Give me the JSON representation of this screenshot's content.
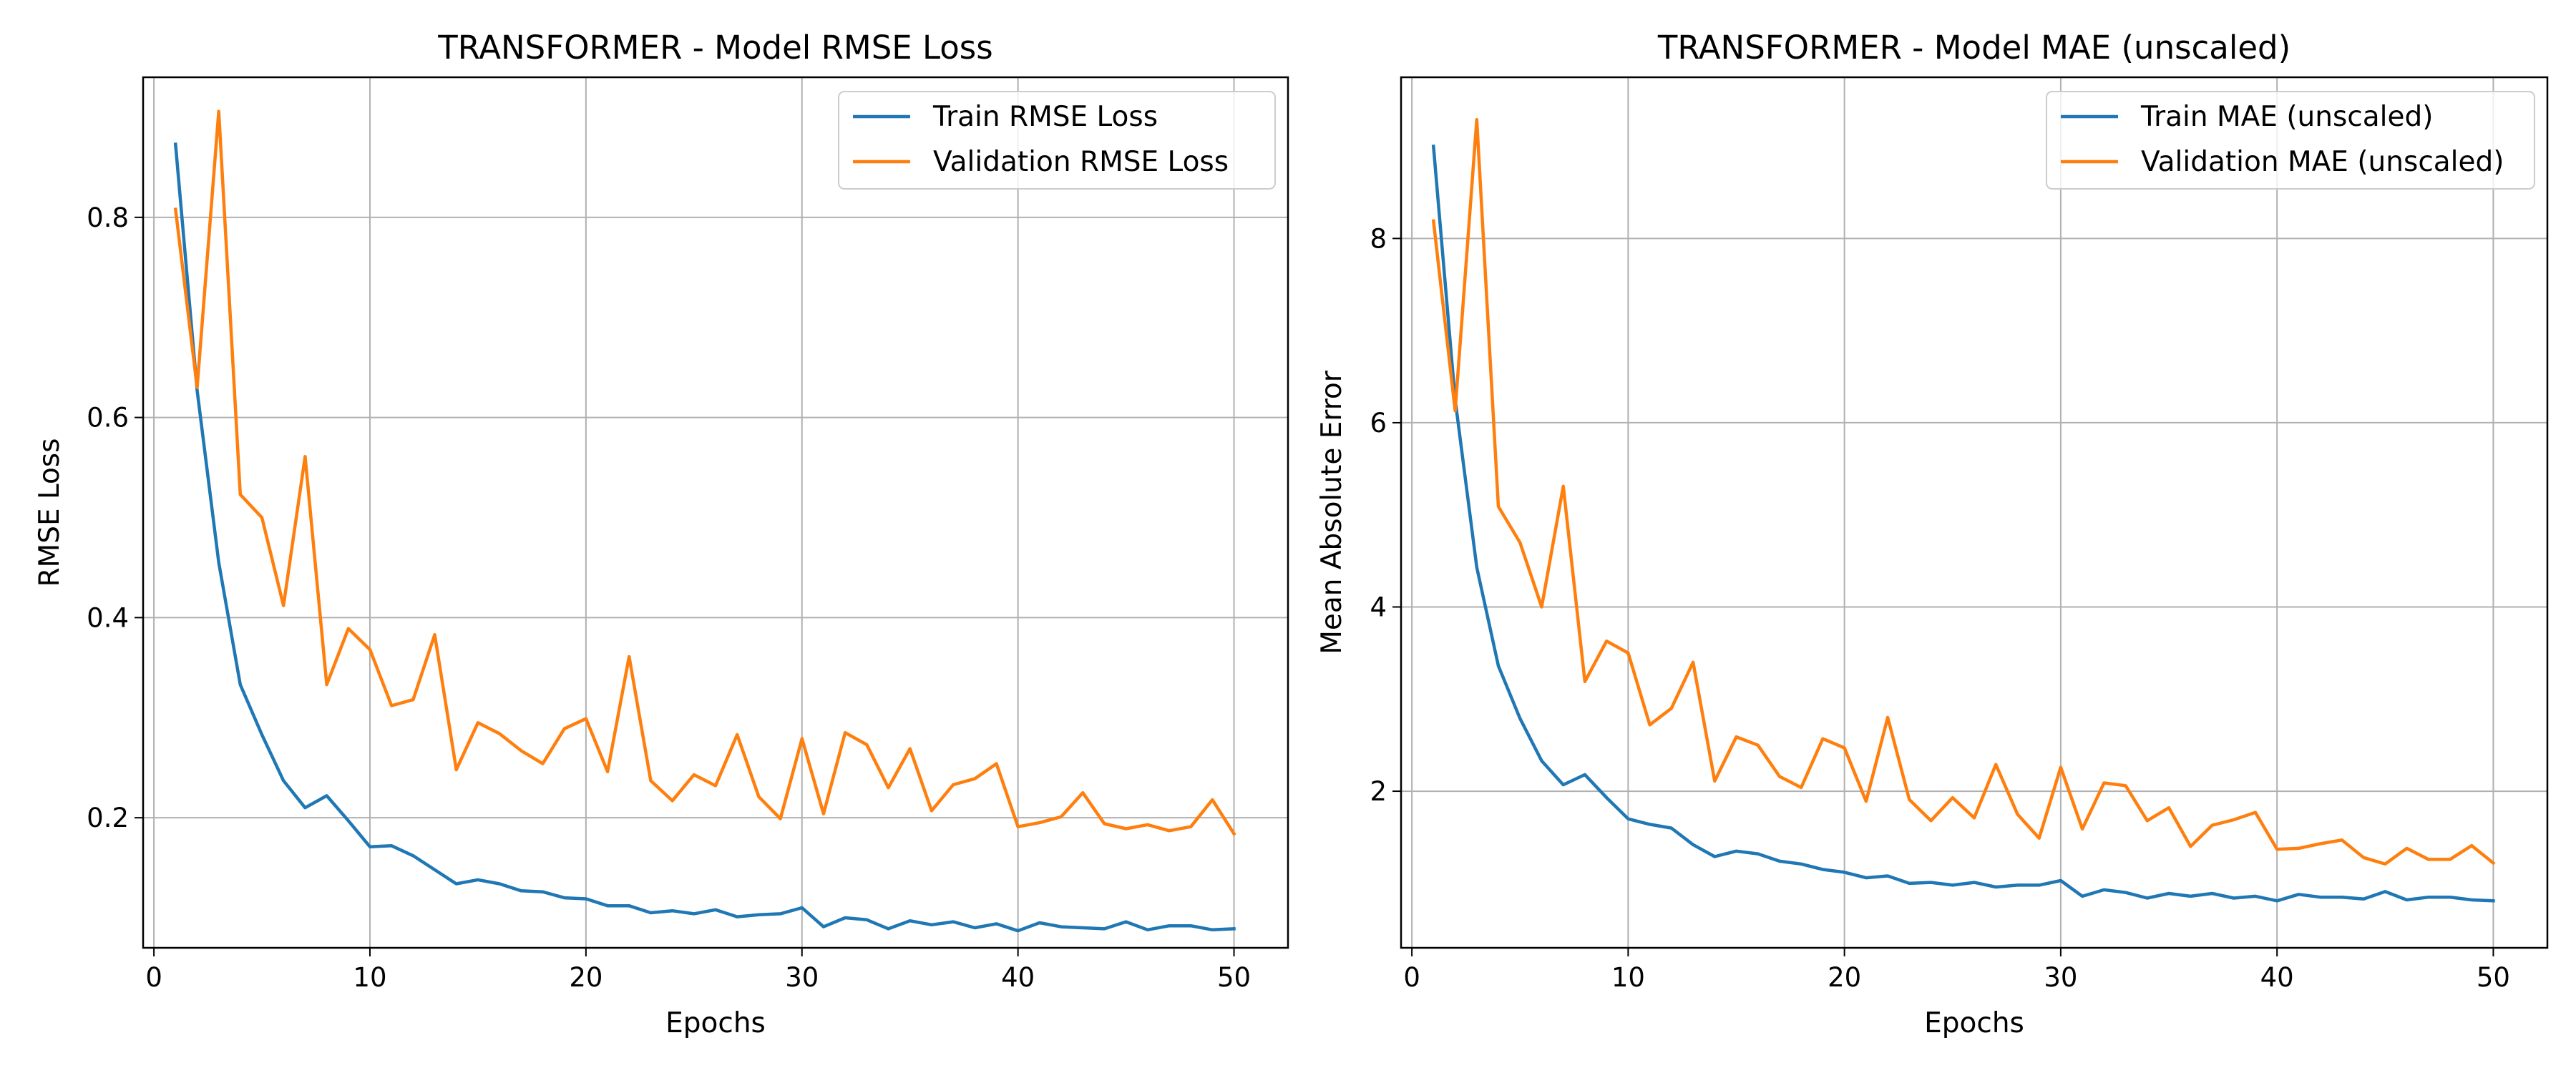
{
  "chart_data": [
    {
      "type": "line",
      "title": "TRANSFORMER - Model RMSE Loss",
      "xlabel": "Epochs",
      "ylabel": "RMSE Loss",
      "xlim": [
        -0.5,
        52.5
      ],
      "ylim": [
        0.07,
        0.94
      ],
      "xticks": [
        0,
        10,
        20,
        30,
        40,
        50
      ],
      "yticks": [
        0.2,
        0.4,
        0.6,
        0.8
      ],
      "ytick_labels": [
        "0.2",
        "0.4",
        "0.6",
        "0.8"
      ],
      "grid": true,
      "legend_position": "top-right",
      "x": [
        1,
        2,
        3,
        4,
        5,
        6,
        7,
        8,
        9,
        10,
        11,
        12,
        13,
        14,
        15,
        16,
        17,
        18,
        19,
        20,
        21,
        22,
        23,
        24,
        25,
        26,
        27,
        28,
        29,
        30,
        31,
        32,
        33,
        34,
        35,
        36,
        37,
        38,
        39,
        40,
        41,
        42,
        43,
        44,
        45,
        46,
        47,
        48,
        49,
        50
      ],
      "series": [
        {
          "name": "Train RMSE Loss",
          "color": "#1f77b4",
          "values": [
            0.873,
            0.627,
            0.455,
            0.333,
            0.283,
            0.237,
            0.21,
            0.222,
            0.197,
            0.171,
            0.172,
            0.162,
            0.148,
            0.134,
            0.138,
            0.134,
            0.127,
            0.126,
            0.12,
            0.119,
            0.112,
            0.112,
            0.105,
            0.107,
            0.104,
            0.108,
            0.101,
            0.103,
            0.104,
            0.11,
            0.091,
            0.1,
            0.098,
            0.089,
            0.097,
            0.093,
            0.096,
            0.09,
            0.094,
            0.087,
            0.095,
            0.091,
            0.09,
            0.089,
            0.096,
            0.088,
            0.092,
            0.092,
            0.088,
            0.089
          ]
        },
        {
          "name": "Validation RMSE Loss",
          "color": "#ff7f0e",
          "values": [
            0.808,
            0.63,
            0.906,
            0.523,
            0.5,
            0.412,
            0.561,
            0.333,
            0.389,
            0.368,
            0.312,
            0.318,
            0.383,
            0.248,
            0.295,
            0.284,
            0.267,
            0.254,
            0.289,
            0.299,
            0.246,
            0.361,
            0.237,
            0.217,
            0.243,
            0.232,
            0.283,
            0.221,
            0.199,
            0.279,
            0.204,
            0.285,
            0.273,
            0.23,
            0.269,
            0.207,
            0.233,
            0.239,
            0.254,
            0.191,
            0.195,
            0.201,
            0.225,
            0.194,
            0.189,
            0.193,
            0.187,
            0.191,
            0.218,
            0.184
          ]
        }
      ]
    },
    {
      "type": "line",
      "title": "TRANSFORMER - Model MAE (unscaled)",
      "xlabel": "Epochs",
      "ylabel": "Mean Absolute Error",
      "xlim": [
        -0.5,
        52.5
      ],
      "ylim": [
        0.3,
        9.75
      ],
      "xticks": [
        0,
        10,
        20,
        30,
        40,
        50
      ],
      "yticks": [
        2,
        4,
        6,
        8
      ],
      "ytick_labels": [
        "2",
        "4",
        "6",
        "8"
      ],
      "grid": true,
      "legend_position": "top-right",
      "x": [
        1,
        2,
        3,
        4,
        5,
        6,
        7,
        8,
        9,
        10,
        11,
        12,
        13,
        14,
        15,
        16,
        17,
        18,
        19,
        20,
        21,
        22,
        23,
        24,
        25,
        26,
        27,
        28,
        29,
        30,
        31,
        32,
        33,
        34,
        35,
        36,
        37,
        38,
        39,
        40,
        41,
        42,
        43,
        44,
        45,
        46,
        47,
        48,
        49,
        50
      ],
      "series": [
        {
          "name": "Train MAE (unscaled)",
          "color": "#1f77b4",
          "values": [
            9.0,
            6.25,
            4.43,
            3.36,
            2.79,
            2.33,
            2.07,
            2.18,
            1.93,
            1.7,
            1.64,
            1.6,
            1.42,
            1.29,
            1.35,
            1.32,
            1.24,
            1.21,
            1.15,
            1.12,
            1.06,
            1.08,
            1.0,
            1.01,
            0.98,
            1.01,
            0.96,
            0.98,
            0.98,
            1.03,
            0.86,
            0.93,
            0.9,
            0.84,
            0.89,
            0.86,
            0.89,
            0.84,
            0.86,
            0.81,
            0.88,
            0.85,
            0.85,
            0.83,
            0.91,
            0.82,
            0.85,
            0.85,
            0.82,
            0.81
          ]
        },
        {
          "name": "Validation MAE (unscaled)",
          "color": "#ff7f0e",
          "values": [
            8.19,
            6.13,
            9.29,
            5.09,
            4.7,
            4.0,
            5.31,
            3.19,
            3.63,
            3.5,
            2.72,
            2.9,
            3.4,
            2.11,
            2.59,
            2.5,
            2.16,
            2.04,
            2.57,
            2.47,
            1.89,
            2.8,
            1.91,
            1.68,
            1.93,
            1.71,
            2.29,
            1.75,
            1.49,
            2.26,
            1.59,
            2.09,
            2.06,
            1.68,
            1.82,
            1.4,
            1.63,
            1.69,
            1.77,
            1.37,
            1.38,
            1.43,
            1.47,
            1.28,
            1.21,
            1.38,
            1.26,
            1.26,
            1.41,
            1.22
          ]
        }
      ]
    }
  ]
}
